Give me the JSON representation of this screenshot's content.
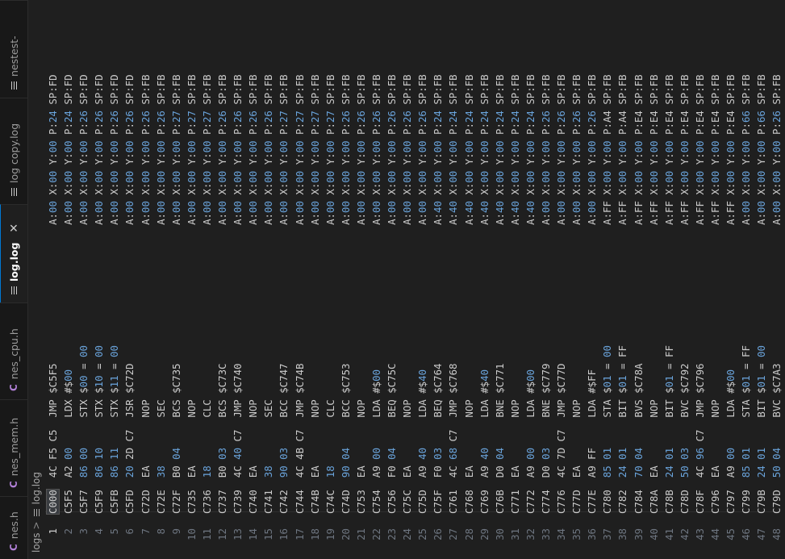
{
  "tabs": [
    {
      "icon": "c",
      "label": "nes.h",
      "active": false
    },
    {
      "icon": "c",
      "label": "nes_mem.h",
      "active": false
    },
    {
      "icon": "c",
      "label": "nes_cpu.h",
      "active": false
    },
    {
      "icon": "lines",
      "label": "log.log",
      "active": true
    },
    {
      "icon": "lines",
      "label": "log copy.log",
      "active": false
    },
    {
      "icon": "lines",
      "label": "nestest-",
      "active": false
    }
  ],
  "breadcrumb": {
    "folder": "logs",
    "separator": ">",
    "file": "log.log"
  },
  "log_lines": [
    {
      "n": "1",
      "addr": "C000",
      "bytes": "4C F5 C5",
      "op": "JMP $C5F5",
      "regs": "A:00 X:00 Y:00 P:24 SP:FD"
    },
    {
      "n": "2",
      "addr": "C5F5",
      "bytes": "A2 00",
      "op": "LDX #$00",
      "regs": "A:00 X:00 Y:00 P:24 SP:FD"
    },
    {
      "n": "3",
      "addr": "C5F7",
      "bytes": "86 00",
      "op": "STX $00 = 00",
      "regs": "A:00 X:00 Y:00 P:26 SP:FD"
    },
    {
      "n": "4",
      "addr": "C5F9",
      "bytes": "86 10",
      "op": "STX $10 = 00",
      "regs": "A:00 X:00 Y:00 P:26 SP:FD"
    },
    {
      "n": "5",
      "addr": "C5FB",
      "bytes": "86 11",
      "op": "STX $11 = 00",
      "regs": "A:00 X:00 Y:00 P:26 SP:FD"
    },
    {
      "n": "6",
      "addr": "C5FD",
      "bytes": "20 2D C7",
      "op": "JSR $C72D",
      "regs": "A:00 X:00 Y:00 P:26 SP:FD"
    },
    {
      "n": "7",
      "addr": "C72D",
      "bytes": "EA",
      "op": "NOP",
      "regs": "A:00 X:00 Y:00 P:26 SP:FB"
    },
    {
      "n": "8",
      "addr": "C72E",
      "bytes": "38",
      "op": "SEC",
      "regs": "A:00 X:00 Y:00 P:26 SP:FB"
    },
    {
      "n": "9",
      "addr": "C72F",
      "bytes": "B0 04",
      "op": "BCS $C735",
      "regs": "A:00 X:00 Y:00 P:27 SP:FB"
    },
    {
      "n": "10",
      "addr": "C735",
      "bytes": "EA",
      "op": "NOP",
      "regs": "A:00 X:00 Y:00 P:27 SP:FB"
    },
    {
      "n": "11",
      "addr": "C736",
      "bytes": "18",
      "op": "CLC",
      "regs": "A:00 X:00 Y:00 P:27 SP:FB"
    },
    {
      "n": "12",
      "addr": "C737",
      "bytes": "B0 03",
      "op": "BCS $C73C",
      "regs": "A:00 X:00 Y:00 P:26 SP:FB"
    },
    {
      "n": "13",
      "addr": "C739",
      "bytes": "4C 40 C7",
      "op": "JMP $C740",
      "regs": "A:00 X:00 Y:00 P:26 SP:FB"
    },
    {
      "n": "14",
      "addr": "C740",
      "bytes": "EA",
      "op": "NOP",
      "regs": "A:00 X:00 Y:00 P:26 SP:FB"
    },
    {
      "n": "15",
      "addr": "C741",
      "bytes": "38",
      "op": "SEC",
      "regs": "A:00 X:00 Y:00 P:26 SP:FB"
    },
    {
      "n": "16",
      "addr": "C742",
      "bytes": "90 03",
      "op": "BCC $C747",
      "regs": "A:00 X:00 Y:00 P:27 SP:FB"
    },
    {
      "n": "17",
      "addr": "C744",
      "bytes": "4C 4B C7",
      "op": "JMP $C74B",
      "regs": "A:00 X:00 Y:00 P:27 SP:FB"
    },
    {
      "n": "18",
      "addr": "C74B",
      "bytes": "EA",
      "op": "NOP",
      "regs": "A:00 X:00 Y:00 P:27 SP:FB"
    },
    {
      "n": "19",
      "addr": "C74C",
      "bytes": "18",
      "op": "CLC",
      "regs": "A:00 X:00 Y:00 P:27 SP:FB"
    },
    {
      "n": "20",
      "addr": "C74D",
      "bytes": "90 04",
      "op": "BCC $C753",
      "regs": "A:00 X:00 Y:00 P:26 SP:FB"
    },
    {
      "n": "21",
      "addr": "C753",
      "bytes": "EA",
      "op": "NOP",
      "regs": "A:00 X:00 Y:00 P:26 SP:FB"
    },
    {
      "n": "22",
      "addr": "C754",
      "bytes": "A9 00",
      "op": "LDA #$00",
      "regs": "A:00 X:00 Y:00 P:26 SP:FB"
    },
    {
      "n": "23",
      "addr": "C756",
      "bytes": "F0 04",
      "op": "BEQ $C75C",
      "regs": "A:00 X:00 Y:00 P:26 SP:FB"
    },
    {
      "n": "24",
      "addr": "C75C",
      "bytes": "EA",
      "op": "NOP",
      "regs": "A:00 X:00 Y:00 P:26 SP:FB"
    },
    {
      "n": "25",
      "addr": "C75D",
      "bytes": "A9 40",
      "op": "LDA #$40",
      "regs": "A:00 X:00 Y:00 P:26 SP:FB"
    },
    {
      "n": "26",
      "addr": "C75F",
      "bytes": "F0 03",
      "op": "BEQ $C764",
      "regs": "A:40 X:00 Y:00 P:24 SP:FB"
    },
    {
      "n": "27",
      "addr": "C761",
      "bytes": "4C 68 C7",
      "op": "JMP $C768",
      "regs": "A:40 X:00 Y:00 P:24 SP:FB"
    },
    {
      "n": "28",
      "addr": "C768",
      "bytes": "EA",
      "op": "NOP",
      "regs": "A:40 X:00 Y:00 P:24 SP:FB"
    },
    {
      "n": "29",
      "addr": "C769",
      "bytes": "A9 40",
      "op": "LDA #$40",
      "regs": "A:40 X:00 Y:00 P:24 SP:FB"
    },
    {
      "n": "30",
      "addr": "C76B",
      "bytes": "D0 04",
      "op": "BNE $C771",
      "regs": "A:40 X:00 Y:00 P:24 SP:FB"
    },
    {
      "n": "31",
      "addr": "C771",
      "bytes": "EA",
      "op": "NOP",
      "regs": "A:40 X:00 Y:00 P:24 SP:FB"
    },
    {
      "n": "32",
      "addr": "C772",
      "bytes": "A9 00",
      "op": "LDA #$00",
      "regs": "A:40 X:00 Y:00 P:24 SP:FB"
    },
    {
      "n": "33",
      "addr": "C774",
      "bytes": "D0 03",
      "op": "BNE $C779",
      "regs": "A:00 X:00 Y:00 P:26 SP:FB"
    },
    {
      "n": "34",
      "addr": "C776",
      "bytes": "4C 7D C7",
      "op": "JMP $C77D",
      "regs": "A:00 X:00 Y:00 P:26 SP:FB"
    },
    {
      "n": "35",
      "addr": "C77D",
      "bytes": "EA",
      "op": "NOP",
      "regs": "A:00 X:00 Y:00 P:26 SP:FB"
    },
    {
      "n": "36",
      "addr": "C77E",
      "bytes": "A9 FF",
      "op": "LDA #$FF",
      "regs": "A:00 X:00 Y:00 P:26 SP:FB"
    },
    {
      "n": "37",
      "addr": "C780",
      "bytes": "85 01",
      "op": "STA $01 = 00",
      "regs": "A:FF X:00 Y:00 P:A4 SP:FB"
    },
    {
      "n": "38",
      "addr": "C782",
      "bytes": "24 01",
      "op": "BIT $01 = FF",
      "regs": "A:FF X:00 Y:00 P:A4 SP:FB"
    },
    {
      "n": "39",
      "addr": "C784",
      "bytes": "70 04",
      "op": "BVS $C78A",
      "regs": "A:FF X:00 Y:00 P:E4 SP:FB"
    },
    {
      "n": "40",
      "addr": "C78A",
      "bytes": "EA",
      "op": "NOP",
      "regs": "A:FF X:00 Y:00 P:E4 SP:FB"
    },
    {
      "n": "41",
      "addr": "C78B",
      "bytes": "24 01",
      "op": "BIT $01 = FF",
      "regs": "A:FF X:00 Y:00 P:E4 SP:FB"
    },
    {
      "n": "42",
      "addr": "C78D",
      "bytes": "50 03",
      "op": "BVC $C792",
      "regs": "A:FF X:00 Y:00 P:E4 SP:FB"
    },
    {
      "n": "43",
      "addr": "C78F",
      "bytes": "4C 96 C7",
      "op": "JMP $C796",
      "regs": "A:FF X:00 Y:00 P:E4 SP:FB"
    },
    {
      "n": "44",
      "addr": "C796",
      "bytes": "EA",
      "op": "NOP",
      "regs": "A:FF X:00 Y:00 P:E4 SP:FB"
    },
    {
      "n": "45",
      "addr": "C797",
      "bytes": "A9 00",
      "op": "LDA #$00",
      "regs": "A:FF X:00 Y:00 P:E4 SP:FB"
    },
    {
      "n": "46",
      "addr": "C799",
      "bytes": "85 01",
      "op": "STA $01 = FF",
      "regs": "A:00 X:00 Y:00 P:66 SP:FB"
    },
    {
      "n": "47",
      "addr": "C79B",
      "bytes": "24 01",
      "op": "BIT $01 = 00",
      "regs": "A:00 X:00 Y:00 P:66 SP:FB"
    },
    {
      "n": "48",
      "addr": "C79D",
      "bytes": "50 04",
      "op": "BVC $C7A3",
      "regs": "A:00 X:00 Y:00 P:26 SP:FB"
    }
  ]
}
